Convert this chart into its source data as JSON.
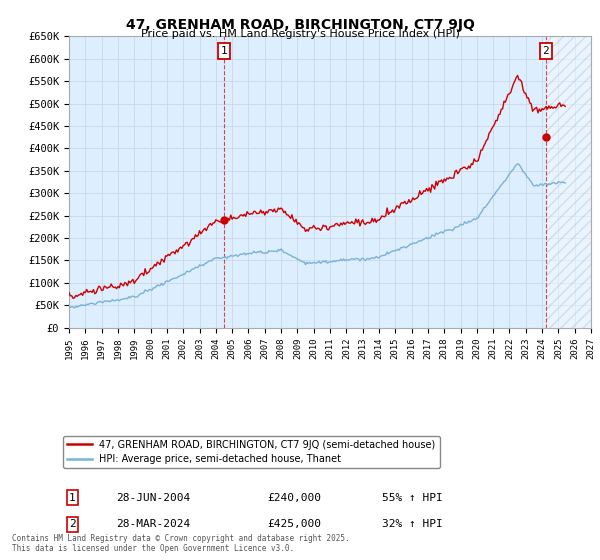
{
  "title": "47, GRENHAM ROAD, BIRCHINGTON, CT7 9JQ",
  "subtitle": "Price paid vs. HM Land Registry's House Price Index (HPI)",
  "ylim": [
    0,
    650000
  ],
  "yticks": [
    0,
    50000,
    100000,
    150000,
    200000,
    250000,
    300000,
    350000,
    400000,
    450000,
    500000,
    550000,
    600000,
    650000
  ],
  "ytick_labels": [
    "£0",
    "£50K",
    "£100K",
    "£150K",
    "£200K",
    "£250K",
    "£300K",
    "£350K",
    "£400K",
    "£450K",
    "£500K",
    "£550K",
    "£600K",
    "£650K"
  ],
  "xlim_start": 1995.0,
  "xlim_end": 2027.0,
  "sale1_x": 2004.49,
  "sale1_y": 240000,
  "sale2_x": 2024.24,
  "sale2_y": 425000,
  "red_line_color": "#cc0000",
  "blue_line_color": "#7ab3d4",
  "grid_color": "#c8d8e8",
  "bg_color": "#ddeeff",
  "legend_line1": "47, GRENHAM ROAD, BIRCHINGTON, CT7 9JQ (semi-detached house)",
  "legend_line2": "HPI: Average price, semi-detached house, Thanet",
  "annot1_date": "28-JUN-2004",
  "annot1_price": "£240,000",
  "annot1_hpi": "55% ↑ HPI",
  "annot2_date": "28-MAR-2024",
  "annot2_price": "£425,000",
  "annot2_hpi": "32% ↑ HPI",
  "footer": "Contains HM Land Registry data © Crown copyright and database right 2025.\nThis data is licensed under the Open Government Licence v3.0."
}
